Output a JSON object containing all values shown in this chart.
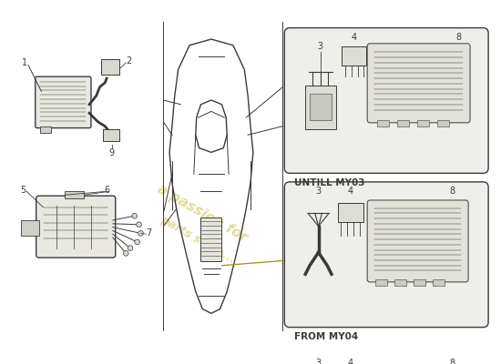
{
  "bg_color": "#ffffff",
  "line_color": "#3a3a3a",
  "watermark_color": "#c8b830",
  "watermark_text1": "a passion for",
  "watermark_text2": "parts since...",
  "label_1": "1",
  "label_2": "2",
  "label_9": "9",
  "label_5": "5",
  "label_6": "6",
  "label_7": "7",
  "label_3a": "3",
  "label_4a": "4",
  "label_8a": "8",
  "label_3b": "3",
  "label_4b": "4",
  "label_8b": "8",
  "until_text": "UNTILL MY03",
  "from_text": "FROM MY04",
  "figsize": [
    5.5,
    4.0
  ],
  "dpi": 100
}
